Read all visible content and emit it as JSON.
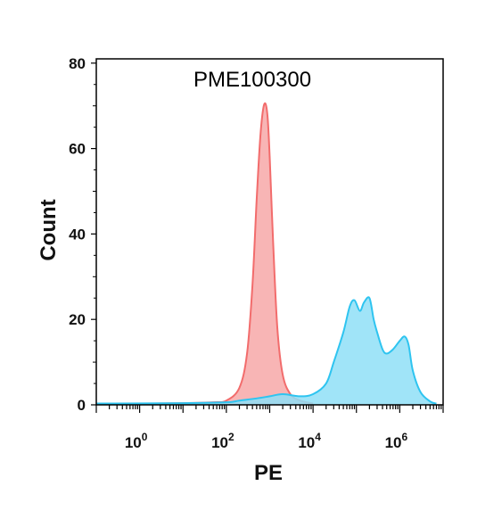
{
  "chart_data": {
    "type": "area",
    "title": "PME100300",
    "xlabel": "PE",
    "ylabel": "Count",
    "x_scale": "log",
    "xlim": [
      0.1,
      10000000
    ],
    "ylim": [
      0,
      81
    ],
    "yticks": [
      0,
      20,
      40,
      60,
      80
    ],
    "xtick_labels": [
      {
        "base": "10",
        "exp": "0",
        "value": 1
      },
      {
        "base": "10",
        "exp": "2",
        "value": 100
      },
      {
        "base": "10",
        "exp": "4",
        "value": 10000
      },
      {
        "base": "10",
        "exp": "6",
        "value": 1000000
      }
    ],
    "grid": false,
    "legend": "none",
    "series": [
      {
        "color": "#f26c6c",
        "fill": "#f7a8a8",
        "x": [
          0.1,
          1,
          10,
          50,
          100,
          200,
          300,
          400,
          500,
          600,
          700,
          800,
          900,
          1000,
          1200,
          1500,
          2000,
          3000,
          5000,
          10000
        ],
        "y": [
          0.3,
          0.3,
          0.4,
          0.6,
          1.0,
          4.0,
          12.0,
          28.0,
          48.0,
          62.0,
          69.0,
          70.5,
          67.0,
          58.0,
          38.0,
          18.0,
          7.0,
          2.5,
          1.0,
          0.3
        ]
      },
      {
        "color": "#2ec4f0",
        "fill": "#8fdff7",
        "x": [
          0.1,
          10,
          100,
          200,
          500,
          1000,
          2000,
          5000,
          10000,
          20000,
          30000,
          50000,
          70000,
          90000,
          120000,
          150000,
          200000,
          250000,
          300000,
          400000,
          500000,
          700000,
          1000000,
          1300000,
          1600000,
          2000000,
          3000000,
          5000000,
          7000000
        ],
        "y": [
          0.3,
          0.4,
          0.6,
          1.0,
          1.5,
          2.0,
          2.5,
          2.0,
          2.5,
          5.0,
          10.0,
          17.0,
          23.0,
          24.5,
          22.0,
          24.0,
          25.0,
          20.0,
          17.0,
          13.0,
          12.0,
          13.0,
          15.0,
          16.0,
          14.0,
          8.0,
          3.0,
          0.8,
          0.3
        ]
      }
    ]
  }
}
